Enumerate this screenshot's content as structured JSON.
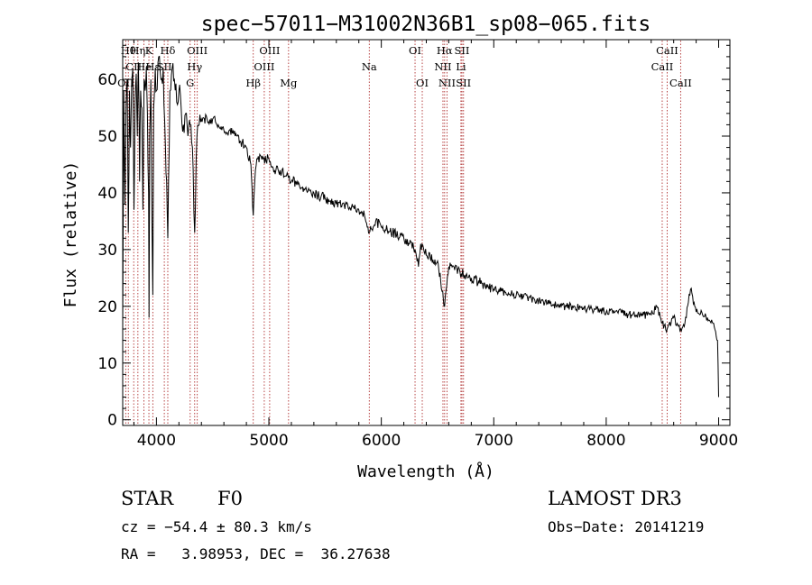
{
  "chart_data": {
    "type": "line",
    "title": "spec−57011−M31002N36B1_sp08−065.fits",
    "xlabel": "Wavelength (Å)",
    "ylabel": "Flux (relative)",
    "xlim": [
      3700,
      9100
    ],
    "ylim": [
      -1,
      67
    ],
    "xticks": [
      4000,
      5000,
      6000,
      7000,
      8000,
      9000
    ],
    "yticks": [
      0,
      10,
      20,
      30,
      40,
      50,
      60
    ],
    "series": [
      {
        "name": "spectrum",
        "points": [
          [
            3700,
            16
          ],
          [
            3710,
            58
          ],
          [
            3720,
            38
          ],
          [
            3730,
            55
          ],
          [
            3740,
            60
          ],
          [
            3750,
            33
          ],
          [
            3760,
            58
          ],
          [
            3770,
            48
          ],
          [
            3780,
            60
          ],
          [
            3790,
            62
          ],
          [
            3800,
            37
          ],
          [
            3810,
            56
          ],
          [
            3820,
            61
          ],
          [
            3830,
            50
          ],
          [
            3840,
            63
          ],
          [
            3850,
            42
          ],
          [
            3860,
            58
          ],
          [
            3870,
            55
          ],
          [
            3880,
            37
          ],
          [
            3890,
            60
          ],
          [
            3900,
            58
          ],
          [
            3910,
            62
          ],
          [
            3920,
            54
          ],
          [
            3930,
            40
          ],
          [
            3934,
            18
          ],
          [
            3940,
            50
          ],
          [
            3950,
            60
          ],
          [
            3960,
            35
          ],
          [
            3968,
            22
          ],
          [
            3975,
            55
          ],
          [
            3990,
            62
          ],
          [
            4000,
            58
          ],
          [
            4020,
            64
          ],
          [
            4040,
            60
          ],
          [
            4060,
            62
          ],
          [
            4080,
            48
          ],
          [
            4101,
            32
          ],
          [
            4120,
            58
          ],
          [
            4140,
            62
          ],
          [
            4160,
            60
          ],
          [
            4180,
            56
          ],
          [
            4200,
            58
          ],
          [
            4220,
            55
          ],
          [
            4240,
            52
          ],
          [
            4260,
            54
          ],
          [
            4280,
            50
          ],
          [
            4300,
            52
          ],
          [
            4320,
            48
          ],
          [
            4340,
            33
          ],
          [
            4360,
            50
          ],
          [
            4380,
            52
          ],
          [
            4400,
            53
          ],
          [
            4450,
            53
          ],
          [
            4500,
            53
          ],
          [
            4550,
            52
          ],
          [
            4600,
            51
          ],
          [
            4650,
            51
          ],
          [
            4700,
            50
          ],
          [
            4750,
            49
          ],
          [
            4800,
            48
          ],
          [
            4840,
            45
          ],
          [
            4861,
            36
          ],
          [
            4880,
            44
          ],
          [
            4900,
            46
          ],
          [
            4950,
            46
          ],
          [
            5000,
            46
          ],
          [
            5050,
            44
          ],
          [
            5100,
            44
          ],
          [
            5150,
            43
          ],
          [
            5200,
            42
          ],
          [
            5250,
            42
          ],
          [
            5300,
            41
          ],
          [
            5400,
            40
          ],
          [
            5500,
            39
          ],
          [
            5600,
            38
          ],
          [
            5700,
            38
          ],
          [
            5800,
            37
          ],
          [
            5850,
            36
          ],
          [
            5893,
            33
          ],
          [
            5950,
            35
          ],
          [
            6000,
            34
          ],
          [
            6100,
            33
          ],
          [
            6200,
            32
          ],
          [
            6250,
            31
          ],
          [
            6300,
            30
          ],
          [
            6330,
            27
          ],
          [
            6350,
            31
          ],
          [
            6400,
            29
          ],
          [
            6500,
            28
          ],
          [
            6563,
            20
          ],
          [
            6600,
            27
          ],
          [
            6700,
            26
          ],
          [
            6800,
            25
          ],
          [
            6900,
            24
          ],
          [
            7000,
            23
          ],
          [
            7100,
            22.5
          ],
          [
            7200,
            22
          ],
          [
            7300,
            21.5
          ],
          [
            7400,
            21
          ],
          [
            7500,
            20.5
          ],
          [
            7600,
            20
          ],
          [
            7700,
            20
          ],
          [
            7800,
            19.5
          ],
          [
            7900,
            19.5
          ],
          [
            8000,
            19
          ],
          [
            8100,
            19
          ],
          [
            8200,
            18.5
          ],
          [
            8300,
            18.5
          ],
          [
            8400,
            18.5
          ],
          [
            8450,
            20
          ],
          [
            8498,
            17
          ],
          [
            8542,
            16
          ],
          [
            8600,
            18
          ],
          [
            8662,
            16
          ],
          [
            8700,
            17
          ],
          [
            8750,
            23
          ],
          [
            8800,
            19
          ],
          [
            8850,
            19
          ],
          [
            8900,
            18
          ],
          [
            8950,
            17
          ],
          [
            8990,
            14
          ],
          [
            9000,
            4
          ]
        ]
      }
    ],
    "lines": [
      {
        "wl": 3727,
        "label": "OII",
        "row": 3
      },
      {
        "wl": 3750,
        "label": "Hθ",
        "row": 1
      },
      {
        "wl": 3798,
        "label": "CII",
        "row": 2
      },
      {
        "wl": 3835,
        "label": "Hη",
        "row": 1
      },
      {
        "wl": 3889,
        "label": "He",
        "row": 2
      },
      {
        "wl": 3933,
        "label": "K",
        "row": 1
      },
      {
        "wl": 3968,
        "label": "Hε",
        "row": 2
      },
      {
        "wl": 4101,
        "label": "Hδ",
        "row": 1
      },
      {
        "wl": 4070,
        "label": "SII",
        "row": 2
      },
      {
        "wl": 4300,
        "label": "G",
        "row": 3
      },
      {
        "wl": 4340,
        "label": "Hγ",
        "row": 2
      },
      {
        "wl": 4363,
        "label": "OIII",
        "row": 1
      },
      {
        "wl": 4861,
        "label": "Hβ",
        "row": 3
      },
      {
        "wl": 4959,
        "label": "OIII",
        "row": 2
      },
      {
        "wl": 5007,
        "label": "OIII",
        "row": 1
      },
      {
        "wl": 5175,
        "label": "Mg",
        "row": 3
      },
      {
        "wl": 5893,
        "label": "Na",
        "row": 2
      },
      {
        "wl": 6300,
        "label": "OI",
        "row": 1
      },
      {
        "wl": 6364,
        "label": "OI",
        "row": 3
      },
      {
        "wl": 6548,
        "label": "NII",
        "row": 2
      },
      {
        "wl": 6563,
        "label": "Hα",
        "row": 1
      },
      {
        "wl": 6584,
        "label": "NII",
        "row": 3
      },
      {
        "wl": 6717,
        "label": "SII",
        "row": 1
      },
      {
        "wl": 6731,
        "label": "SII",
        "row": 3
      },
      {
        "wl": 6708,
        "label": "Li",
        "row": 2
      },
      {
        "wl": 8498,
        "label": "CaII",
        "row": 2
      },
      {
        "wl": 8542,
        "label": "CaII",
        "row": 1
      },
      {
        "wl": 8662,
        "label": "CaII",
        "row": 3
      }
    ]
  },
  "info": {
    "object_class": "STAR",
    "subclass": "F0",
    "survey": "LAMOST DR3",
    "cz": "cz = −54.4 ± 80.3 km/s",
    "obs_date": "Obs−Date: 20141219",
    "coords": "RA =   3.98953, DEC =  36.27638"
  },
  "colors": {
    "spectrum": "#000000",
    "line_marker": "#b03030"
  }
}
